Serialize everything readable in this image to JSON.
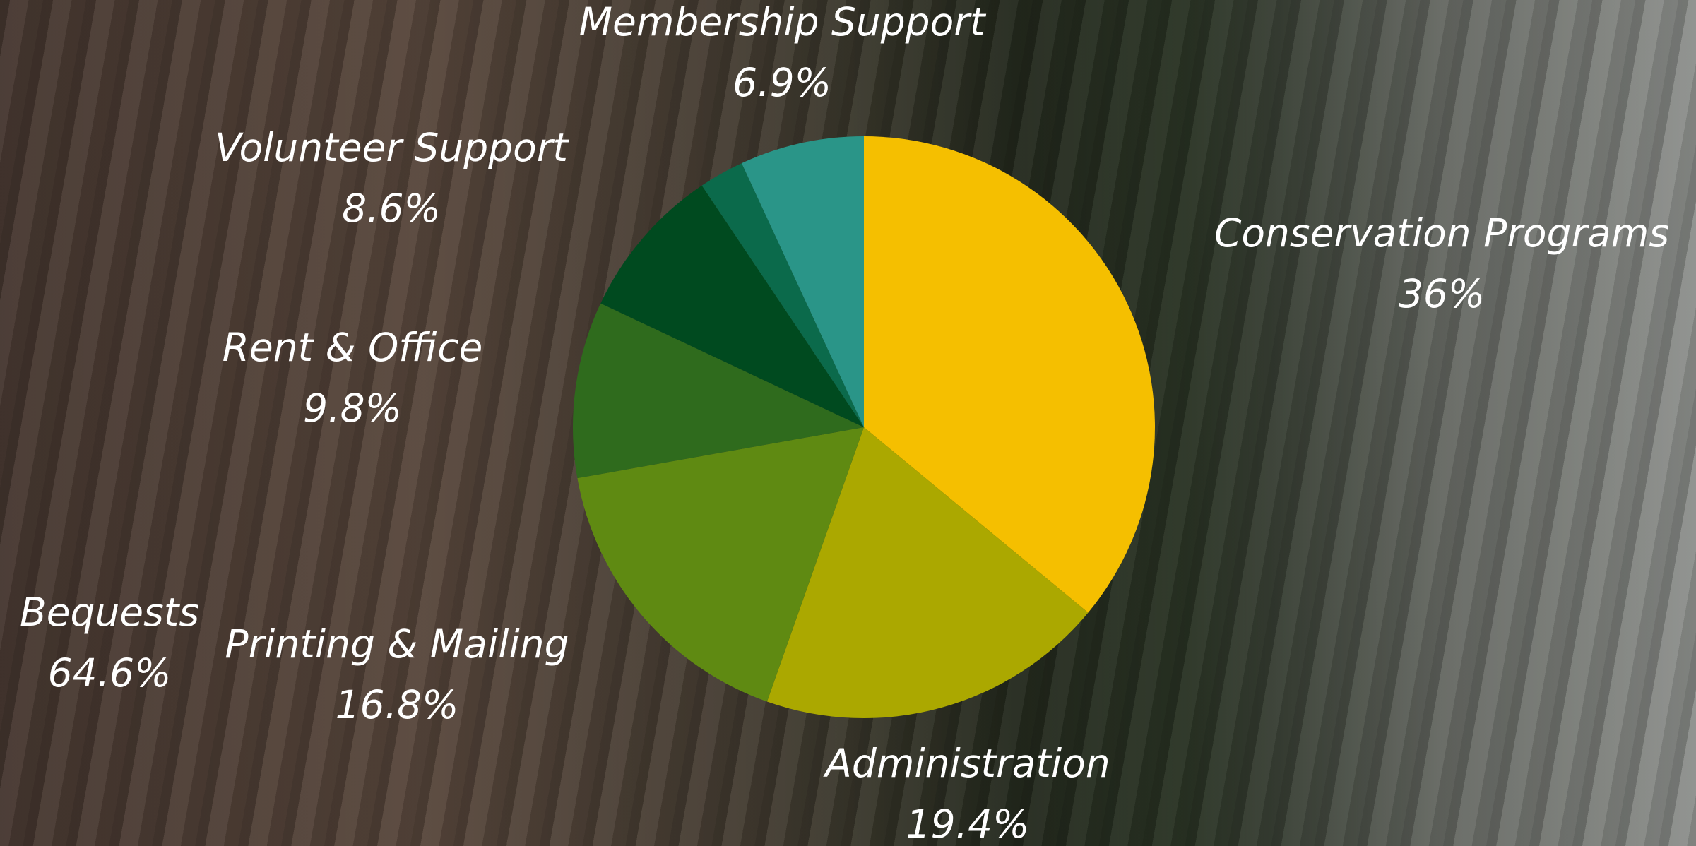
{
  "chart_data": {
    "type": "pie",
    "categories": [
      "Conservation Programs",
      "Administration",
      "Printing & Mailing",
      "Rent & Office",
      "Volunteer Support",
      null,
      "Membership Support"
    ],
    "values": [
      36,
      19.4,
      16.8,
      9.8,
      8.6,
      2.5,
      6.9
    ],
    "value_labels": [
      "36%",
      "19.4%",
      "16.8%",
      "9.8%",
      "8.6%",
      null,
      "6.9%"
    ],
    "colors": [
      "#f5bf00",
      "#aba800",
      "#5f8a12",
      "#2f6b1d",
      "#004a1f",
      "#0b6a4b",
      "#2a9588"
    ],
    "annotations": [
      {
        "text": "Bequests",
        "subtext": "64.6%"
      }
    ]
  }
}
